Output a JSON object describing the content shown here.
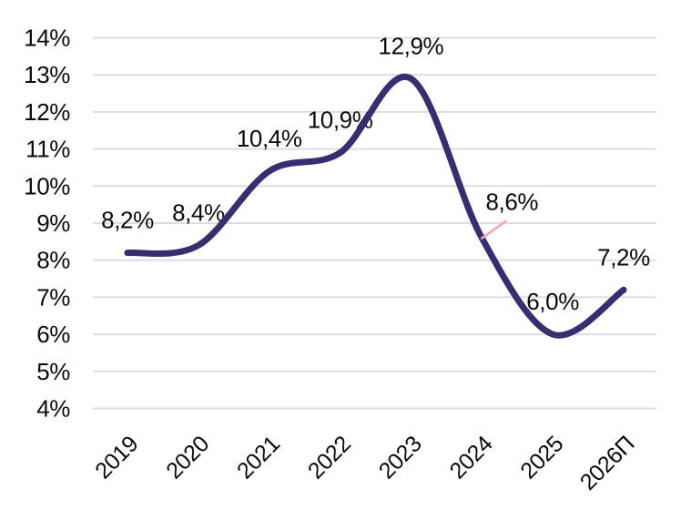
{
  "chart_data": {
    "type": "line",
    "title": "",
    "xlabel": "",
    "ylabel": "",
    "categories": [
      "2019",
      "2020",
      "2021",
      "2022",
      "2023",
      "2024",
      "2025",
      "2026П"
    ],
    "values": [
      8.2,
      8.4,
      10.4,
      10.9,
      12.9,
      8.6,
      6.0,
      7.2
    ],
    "point_labels": [
      "8,2%",
      "8,4%",
      "10,4%",
      "10,9%",
      "12,9%",
      "8,6%",
      "6,0%",
      "7,2%"
    ],
    "y_tick_labels": [
      "14%",
      "13%",
      "12%",
      "11%",
      "10%",
      "9%",
      "8%",
      "7%",
      "6%",
      "5%",
      "4%"
    ],
    "y_tick_values": [
      14,
      13,
      12,
      11,
      10,
      9,
      8,
      7,
      6,
      5,
      4
    ],
    "ylim": [
      4,
      14
    ],
    "grid": "horizontal",
    "legend": "none",
    "x_tick_rotation_deg": -45,
    "callout": {
      "point_index": 5,
      "label": "8,6%"
    },
    "colors": {
      "line": "#3b2b70",
      "grid": "#dcdbe6",
      "text": "#0a0a0a",
      "callout_leader": "#f4a5b0",
      "background": "#ffffff"
    }
  }
}
